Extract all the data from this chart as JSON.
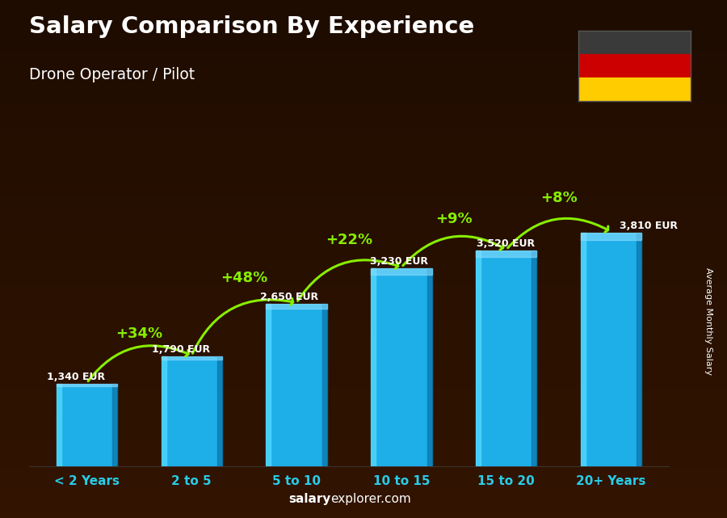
{
  "title": "Salary Comparison By Experience",
  "subtitle": "Drone Operator / Pilot",
  "ylabel": "Average Monthly Salary",
  "categories": [
    "< 2 Years",
    "2 to 5",
    "5 to 10",
    "10 to 15",
    "15 to 20",
    "20+ Years"
  ],
  "values": [
    1340,
    1790,
    2650,
    3230,
    3520,
    3810
  ],
  "value_labels": [
    "1,340 EUR",
    "1,790 EUR",
    "2,650 EUR",
    "3,230 EUR",
    "3,520 EUR",
    "3,810 EUR"
  ],
  "pct_labels": [
    "+34%",
    "+48%",
    "+22%",
    "+9%",
    "+8%"
  ],
  "bar_color": "#1EAEE8",
  "bar_edge_light": "#55CCFF",
  "bar_edge_dark": "#0A7AB0",
  "pct_color": "#88EE00",
  "value_label_color": "#FFFFFF",
  "title_color": "#FFFFFF",
  "subtitle_color": "#FFFFFF",
  "bg_color": "#2a1200",
  "watermark_bold": "salary",
  "watermark_rest": "explorer.com",
  "ylim": [
    0,
    4400
  ],
  "flag_colors": [
    "#3a3a3a",
    "#CC0000",
    "#FFCC00"
  ],
  "xlabel_tick_color": "#29CCE8"
}
